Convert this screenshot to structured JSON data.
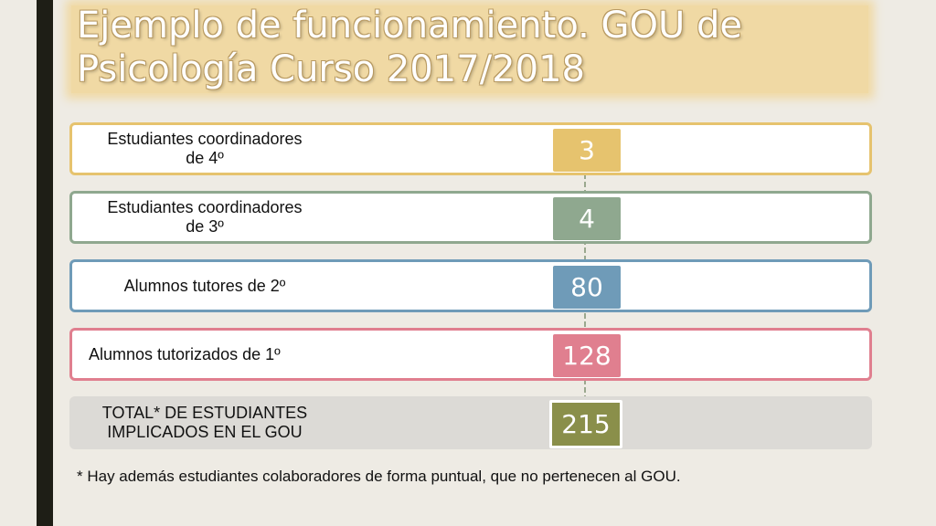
{
  "slide": {
    "title": "Ejemplo de funcionamiento. GOU de Psicología Curso 2017/2018",
    "rows": [
      {
        "label": "Estudiantes coordinadores\nde  4º",
        "value": "3",
        "color": "#e6c36e",
        "border": "#e6c36e"
      },
      {
        "label": "Estudiantes coordinadores\nde 3º",
        "value": "4",
        "color": "#8fa88f",
        "border": "#8fa88f"
      },
      {
        "label": "Alumnos tutores de 2º",
        "value": "80",
        "color": "#6f9bb8",
        "border": "#6f9bb8"
      },
      {
        "label": "Alumnos tutorizados de 1º",
        "value": "128",
        "color": "#e07f8f",
        "border": "#e07f8f"
      },
      {
        "label": "TOTAL* DE ESTUDIANTES\nIMPLICADOS EN EL GOU",
        "value": "215",
        "color": "#8a8f4a",
        "border": "#dcdad6"
      }
    ],
    "footnote": "* Hay además estudiantes colaboradores de forma puntual, que no pertenecen al GOU."
  }
}
